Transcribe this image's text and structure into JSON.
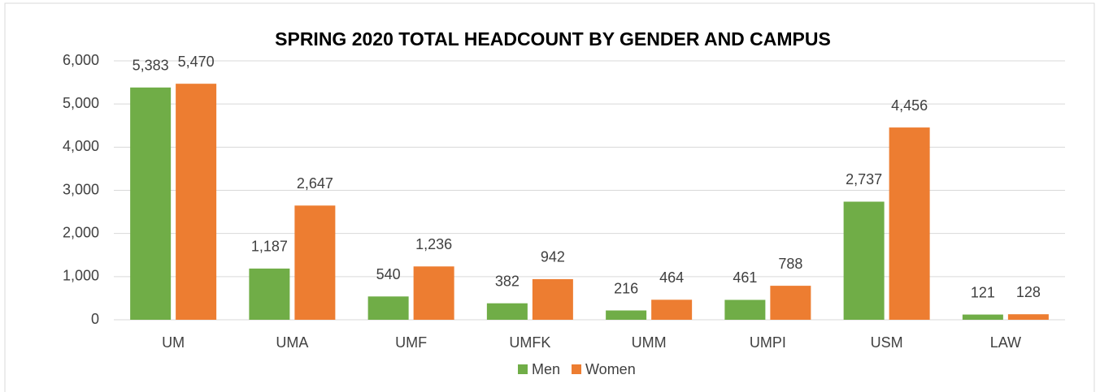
{
  "chart_data": {
    "type": "bar",
    "title": "SPRING 2020 TOTAL HEADCOUNT BY GENDER AND CAMPUS",
    "categories": [
      "UM",
      "UMA",
      "UMF",
      "UMFK",
      "UMM",
      "UMPI",
      "USM",
      "LAW"
    ],
    "series": [
      {
        "name": "Men",
        "color": "#70ad47",
        "values": [
          5383,
          1187,
          540,
          382,
          216,
          461,
          2737,
          121
        ],
        "value_labels": [
          "5,383",
          "1,187",
          "540",
          "382",
          "216",
          "461",
          "2,737",
          "121"
        ]
      },
      {
        "name": "Women",
        "color": "#ed7d31",
        "values": [
          5470,
          2647,
          1236,
          942,
          464,
          788,
          4456,
          128
        ],
        "value_labels": [
          "5,470",
          "2,647",
          "1,236",
          "942",
          "464",
          "788",
          "4,456",
          "128"
        ]
      }
    ],
    "ylim": [
      0,
      6000
    ],
    "yticks": [
      0,
      {
        "value": 1000,
        "label": "1,000"
      },
      {
        "value": 2000,
        "label": "2,000"
      },
      {
        "value": 3000,
        "label": "3,000"
      },
      {
        "value": 4000,
        "label": "4,000"
      },
      {
        "value": 5000,
        "label": "5,000"
      },
      {
        "value": 6000,
        "label": "6,000"
      }
    ],
    "grid": true,
    "legend": "bottom"
  }
}
